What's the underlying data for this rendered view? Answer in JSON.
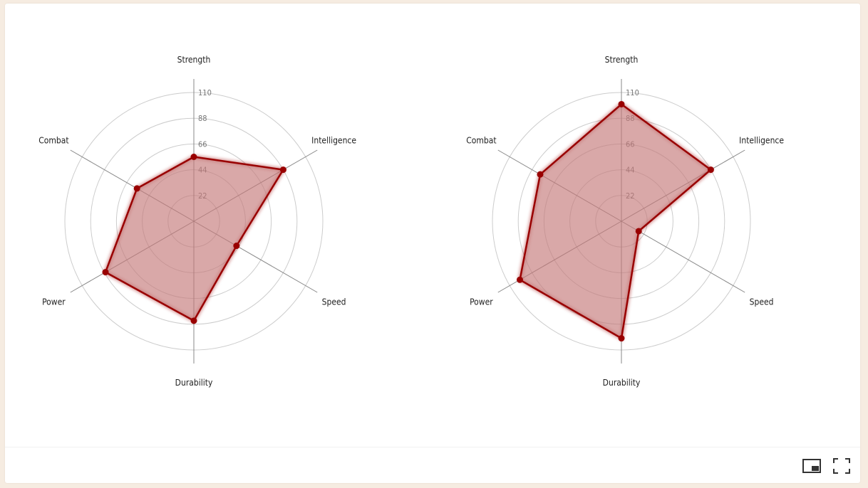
{
  "chart_data": [
    {
      "type": "radar",
      "axes": [
        "Strength",
        "Intelligence",
        "Speed",
        "Durability",
        "Power",
        "Combat"
      ],
      "ticks": [
        "22",
        "44",
        "66",
        "88",
        "110"
      ],
      "rmax": 110,
      "series": [
        {
          "values": [
            55,
            88,
            42,
            85,
            87,
            56
          ]
        }
      ]
    },
    {
      "type": "radar",
      "axes": [
        "Strength",
        "Intelligence",
        "Speed",
        "Durability",
        "Power",
        "Combat"
      ],
      "ticks": [
        "22",
        "44",
        "66",
        "88",
        "110"
      ],
      "rmax": 110,
      "series": [
        {
          "values": [
            100,
            88,
            17,
            100,
            100,
            80
          ]
        }
      ]
    }
  ],
  "colors": {
    "stroke": "#990000",
    "fill": "#c47a7a",
    "grid": "#cccccc",
    "axis": "#888888"
  },
  "controls": {
    "pip_icon": "picture-in-picture-icon",
    "fullscreen_icon": "fullscreen-icon"
  }
}
